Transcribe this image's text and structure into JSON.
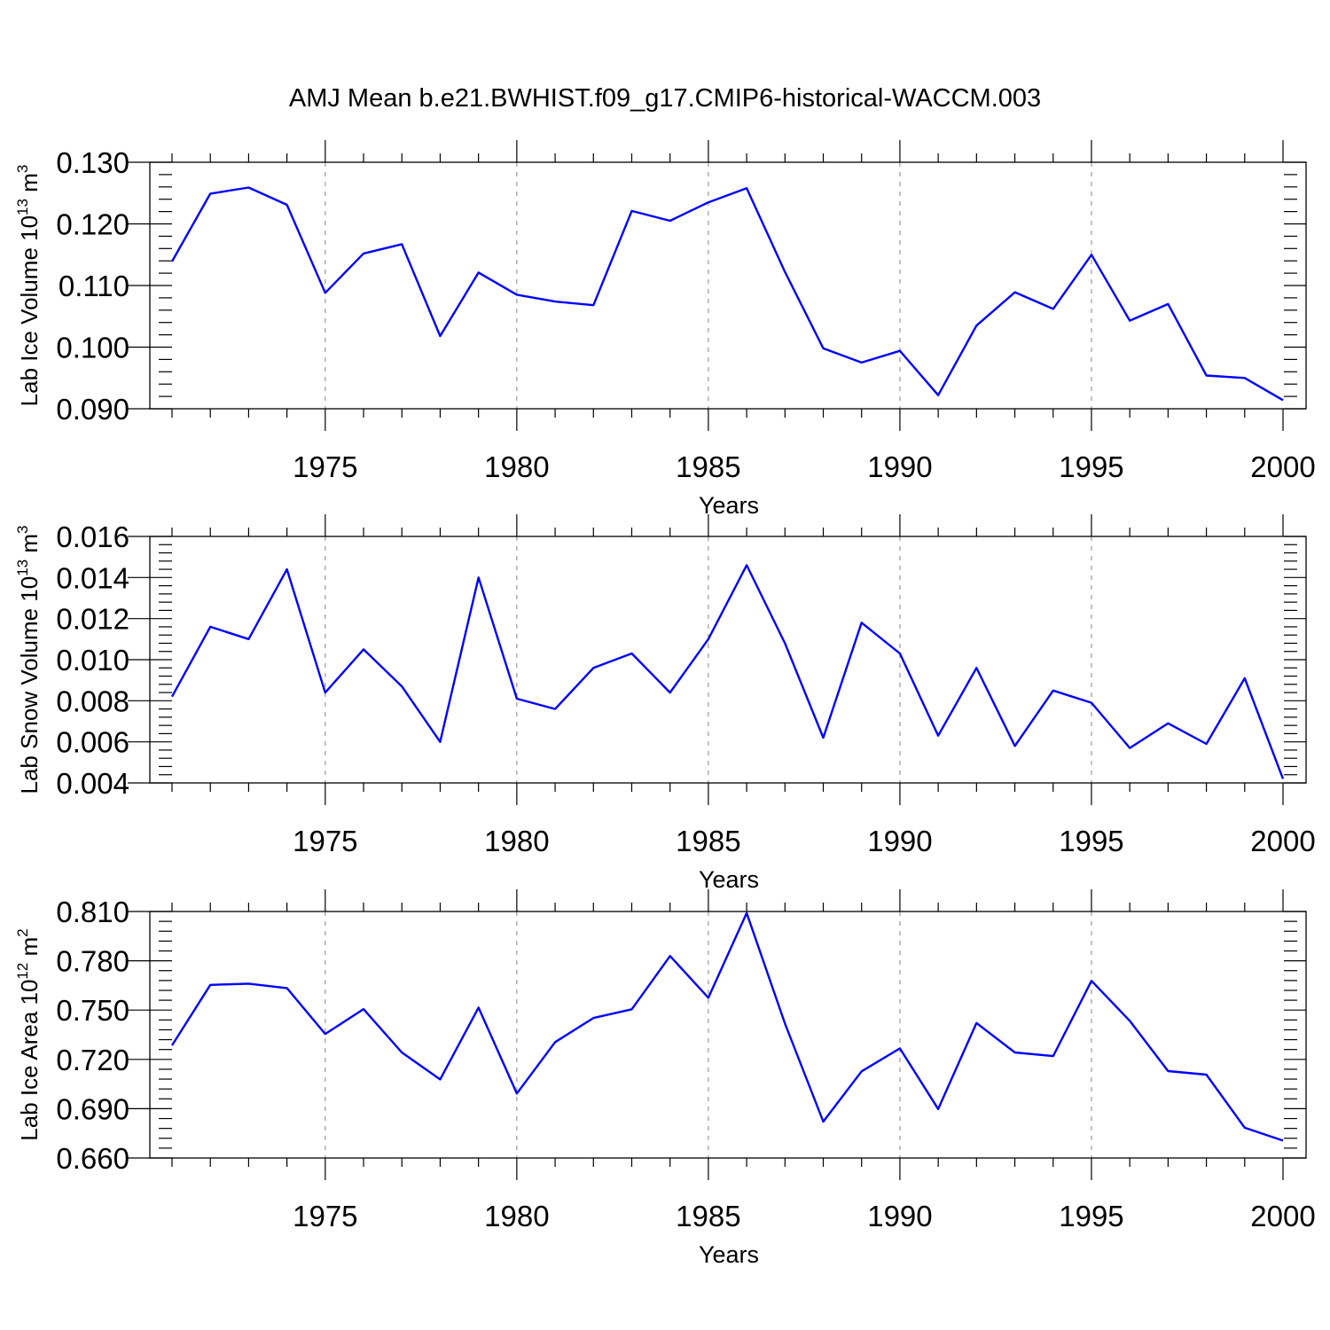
{
  "title": "AMJ Mean b.e21.BWHIST.f09_g17.CMIP6-historical-WACCM.003",
  "colors": {
    "line": "#0000ff",
    "grid": "#999999",
    "axis": "#000000"
  },
  "chart_data": [
    {
      "type": "line",
      "ylabel_prefix": "Lab Ice Volume 10",
      "ylabel_exp": "13",
      "ylabel_unit": " m",
      "ylabel_unit_exp": "3",
      "xlabel": "Years",
      "xlim": [
        1971,
        2000
      ],
      "ylim": [
        0.09,
        0.13
      ],
      "yticks": [
        "0.090",
        "0.100",
        "0.110",
        "0.120",
        "0.130"
      ],
      "xticks": [
        "1975",
        "1980",
        "1985",
        "1990",
        "1995",
        "2000"
      ],
      "x": [
        1971,
        1972,
        1973,
        1974,
        1975,
        1976,
        1977,
        1978,
        1979,
        1980,
        1981,
        1982,
        1983,
        1984,
        1985,
        1986,
        1987,
        1988,
        1989,
        1990,
        1991,
        1992,
        1993,
        1994,
        1995,
        1996,
        1997,
        1998,
        1999,
        2000
      ],
      "values": [
        0.1139,
        0.1249,
        0.1259,
        0.1231,
        0.1088,
        0.1152,
        0.1167,
        0.1018,
        0.1121,
        0.1085,
        0.1074,
        0.1068,
        0.1221,
        0.1205,
        0.1235,
        0.1258,
        0.1122,
        0.0998,
        0.0975,
        0.0994,
        0.0922,
        0.1035,
        0.1089,
        0.1062,
        0.115,
        0.1043,
        0.107,
        0.0954,
        0.095,
        0.0914
      ]
    },
    {
      "type": "line",
      "ylabel_prefix": "Lab Snow Volume 10",
      "ylabel_exp": "13",
      "ylabel_unit": " m",
      "ylabel_unit_exp": "3",
      "xlabel": "Years",
      "xlim": [
        1971,
        2000
      ],
      "ylim": [
        0.004,
        0.016
      ],
      "yticks": [
        "0.004",
        "0.006",
        "0.008",
        "0.010",
        "0.012",
        "0.014",
        "0.016"
      ],
      "xticks": [
        "1975",
        "1980",
        "1985",
        "1990",
        "1995",
        "2000"
      ],
      "x": [
        1971,
        1972,
        1973,
        1974,
        1975,
        1976,
        1977,
        1978,
        1979,
        1980,
        1981,
        1982,
        1983,
        1984,
        1985,
        1986,
        1987,
        1988,
        1989,
        1990,
        1991,
        1992,
        1993,
        1994,
        1995,
        1996,
        1997,
        1998,
        1999,
        2000
      ],
      "values": [
        0.0082,
        0.0116,
        0.011,
        0.0144,
        0.0084,
        0.0105,
        0.0087,
        0.006,
        0.014,
        0.0081,
        0.0076,
        0.0096,
        0.0103,
        0.0084,
        0.011,
        0.0146,
        0.0108,
        0.0062,
        0.0118,
        0.0103,
        0.0063,
        0.0096,
        0.0058,
        0.0085,
        0.0079,
        0.0057,
        0.0069,
        0.0059,
        0.0091,
        0.0042
      ]
    },
    {
      "type": "line",
      "ylabel_prefix": "Lab Ice Area 10",
      "ylabel_exp": "12",
      "ylabel_unit": " m",
      "ylabel_unit_exp": "2",
      "xlabel": "Years",
      "xlim": [
        1971,
        2000
      ],
      "ylim": [
        0.66,
        0.81
      ],
      "yticks": [
        "0.660",
        "0.690",
        "0.720",
        "0.750",
        "0.780",
        "0.810"
      ],
      "xticks": [
        "1975",
        "1980",
        "1985",
        "1990",
        "1995",
        "2000"
      ],
      "x": [
        1971,
        1972,
        1973,
        1974,
        1975,
        1976,
        1977,
        1978,
        1979,
        1980,
        1981,
        1982,
        1983,
        1984,
        1985,
        1986,
        1987,
        1988,
        1989,
        1990,
        1991,
        1992,
        1993,
        1994,
        1995,
        1996,
        1997,
        1998,
        1999,
        2000
      ],
      "values": [
        0.7285,
        0.7653,
        0.7661,
        0.7634,
        0.7355,
        0.7506,
        0.7242,
        0.7078,
        0.7515,
        0.6992,
        0.7305,
        0.7452,
        0.7505,
        0.7829,
        0.7575,
        0.8091,
        0.7418,
        0.6821,
        0.7127,
        0.7267,
        0.6898,
        0.7421,
        0.7242,
        0.722,
        0.7678,
        0.7434,
        0.7129,
        0.7107,
        0.6784,
        0.6706
      ]
    }
  ]
}
